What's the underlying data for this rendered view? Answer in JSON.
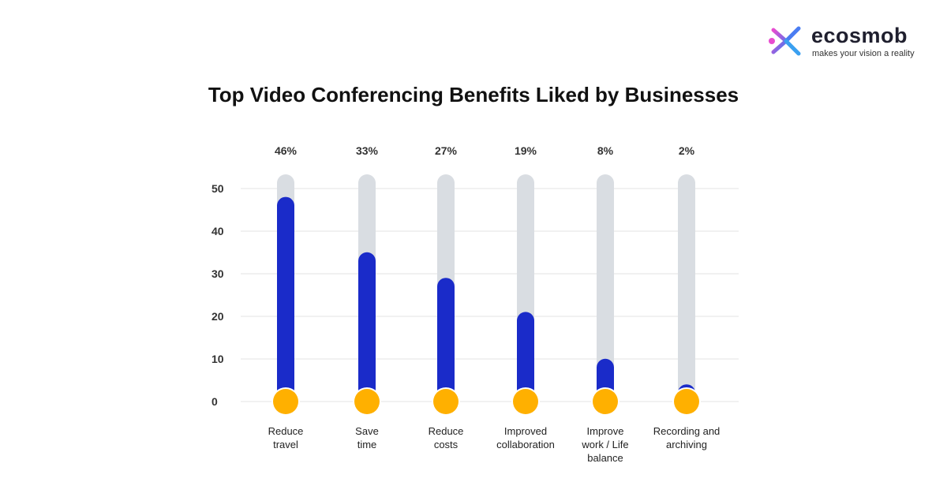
{
  "brand": {
    "name": "ecosmob",
    "tagline": "makes your vision a reality"
  },
  "colors": {
    "track": "#d9dde2",
    "bar": "#1a2bc9",
    "bulb": "#ffb000",
    "grid": "#e3e3e3"
  },
  "chart_data": {
    "type": "bar",
    "title": "Top Video Conferencing Benefits Liked by Businesses",
    "categories": [
      [
        "Reduce",
        "travel"
      ],
      [
        "Save",
        "time"
      ],
      [
        "Reduce",
        "costs"
      ],
      [
        "Improved",
        "collaboration"
      ],
      [
        "Improve",
        "work / Life",
        "balance"
      ],
      [
        "Recording and",
        "archiving"
      ]
    ],
    "values": [
      46,
      33,
      27,
      19,
      8,
      2
    ],
    "value_labels": [
      "46%",
      "33%",
      "27%",
      "19%",
      "8%",
      "2%"
    ],
    "yticks": [
      "0",
      "10",
      "20",
      "30",
      "40",
      "50"
    ],
    "ylim": [
      0,
      50
    ],
    "grid": true
  }
}
